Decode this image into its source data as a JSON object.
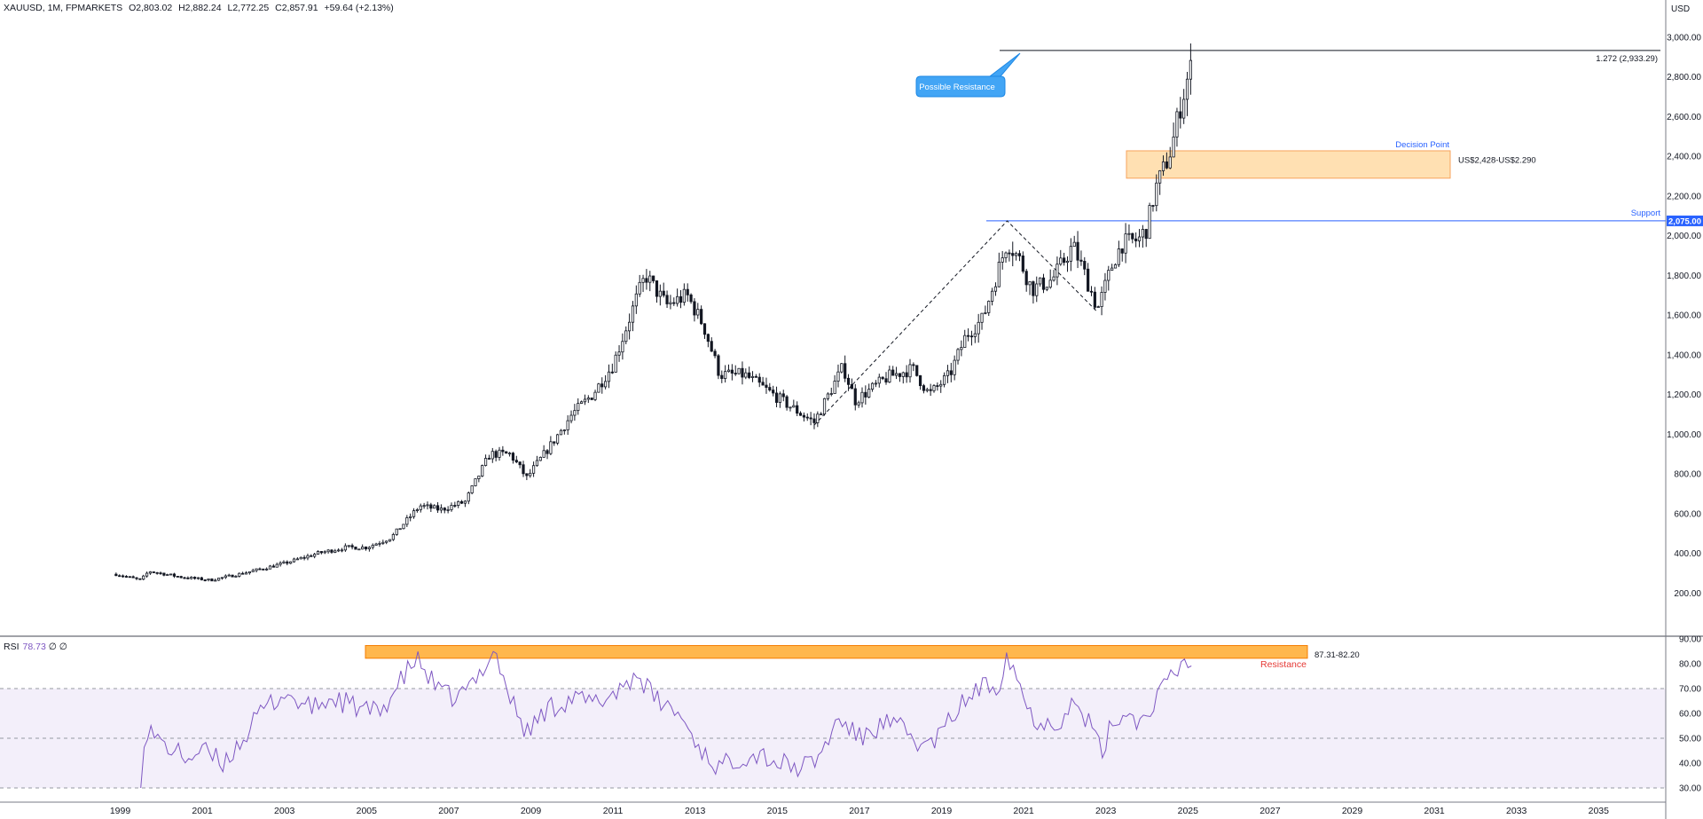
{
  "header": {
    "symbol": "XAUUSD, 1M, FPMARKETS",
    "open": "O2,803.02",
    "high": "H2,882.24",
    "low": "L2,772.25",
    "close": "C2,857.91",
    "change": "+59.64 (+2.13%)"
  },
  "currency": "USD",
  "rsi_header": {
    "name": "RSI",
    "value": "78.73",
    "extra": "∅ ∅"
  },
  "annotations": {
    "fib_label": "1.272 (2,933.29)",
    "possible_resistance": "Possible Resistance",
    "decision_point": "Decision Point",
    "decision_zone": "US$2,428-US$2.290",
    "support": "Support",
    "support_price_tag": "2,075.00",
    "rsi_resistance_range": "87.31-82.20",
    "rsi_resistance": "Resistance"
  },
  "colors": {
    "up": "#131722",
    "down": "#131722",
    "support": "#2962ff",
    "zone_fill": "#ffe0b2",
    "zone_border": "#f7a35c",
    "rsi_line": "#7e57c2",
    "rsi_band": "#f3effa",
    "rsi_resistance_fill": "#ffb74d",
    "callout": "#42a5f5",
    "resistance_text": "#e53935"
  },
  "chart_data": [
    {
      "type": "candlestick",
      "title": "XAUUSD, 1M, FPMARKETS",
      "ylabel": "USD",
      "x_ticks": [
        "1999",
        "2001",
        "2003",
        "2005",
        "2007",
        "2009",
        "2011",
        "2013",
        "2015",
        "2017",
        "2019",
        "2021",
        "2023",
        "2025",
        "2027",
        "2029",
        "2031",
        "2033",
        "2035"
      ],
      "y_ticks": [
        "200.00",
        "400.00",
        "600.00",
        "800.00",
        "1,000.00",
        "1,200.00",
        "1,400.00",
        "1,600.00",
        "1,800.00",
        "2,000.00",
        "2,200.00",
        "2,400.00",
        "2,600.00",
        "2,800.00",
        "3,000.00"
      ],
      "ylim": [
        0,
        3000
      ],
      "price_path": [
        [
          1998.9,
          295
        ],
        [
          1999.5,
          265
        ],
        [
          1999.7,
          310
        ],
        [
          2000.5,
          280
        ],
        [
          2001.2,
          265
        ],
        [
          2002.0,
          300
        ],
        [
          2003.0,
          350
        ],
        [
          2003.8,
          400
        ],
        [
          2004.5,
          430
        ],
        [
          2005.0,
          430
        ],
        [
          2005.6,
          480
        ],
        [
          2006.3,
          640
        ],
        [
          2006.8,
          620
        ],
        [
          2007.4,
          660
        ],
        [
          2008.0,
          900
        ],
        [
          2008.5,
          900
        ],
        [
          2008.9,
          780
        ],
        [
          2009.5,
          950
        ],
        [
          2010.0,
          1100
        ],
        [
          2010.5,
          1200
        ],
        [
          2011.0,
          1350
        ],
        [
          2011.6,
          1700
        ],
        [
          2011.8,
          1800
        ],
        [
          2012.3,
          1650
        ],
        [
          2012.8,
          1700
        ],
        [
          2013.2,
          1550
        ],
        [
          2013.6,
          1300
        ],
        [
          2014.2,
          1300
        ],
        [
          2014.9,
          1200
        ],
        [
          2015.6,
          1100
        ],
        [
          2015.9,
          1060
        ],
        [
          2016.6,
          1340
        ],
        [
          2016.9,
          1170
        ],
        [
          2017.7,
          1290
        ],
        [
          2018.3,
          1330
        ],
        [
          2018.7,
          1200
        ],
        [
          2019.2,
          1300
        ],
        [
          2019.6,
          1500
        ],
        [
          2020.0,
          1580
        ],
        [
          2020.6,
          1970
        ],
        [
          2020.9,
          1880
        ],
        [
          2021.2,
          1730
        ],
        [
          2021.7,
          1780
        ],
        [
          2022.2,
          1950
        ],
        [
          2022.5,
          1800
        ],
        [
          2022.8,
          1630
        ],
        [
          2023.2,
          1880
        ],
        [
          2023.4,
          1960
        ],
        [
          2023.8,
          1980
        ],
        [
          2024.0,
          2040
        ],
        [
          2024.2,
          2230
        ],
        [
          2024.4,
          2330
        ],
        [
          2024.6,
          2440
        ],
        [
          2024.8,
          2640
        ],
        [
          2025.0,
          2800
        ],
        [
          2025.1,
          2858
        ]
      ],
      "swing_low_2015": {
        "x": 2015.9,
        "price": 1046
      },
      "swing_high_2020": {
        "x": 2020.6,
        "price": 2075
      },
      "swing_low_2022": {
        "x": 2022.8,
        "price": 1615
      },
      "support_level": 2075,
      "fib_level": 2933.29,
      "decision_zone": [
        2290,
        2428
      ]
    },
    {
      "type": "line",
      "title": "RSI",
      "y_ticks": [
        "30.00",
        "40.00",
        "50.00",
        "60.00",
        "70.00",
        "80.00",
        "90.00"
      ],
      "ylim": [
        27,
        91
      ],
      "overbought": 70,
      "middle": 50,
      "oversold": 30,
      "resistance_band": [
        82.2,
        87.31
      ],
      "rsi_path": [
        [
          1999.5,
          30
        ],
        [
          1999.6,
          55
        ],
        [
          2000.0,
          48
        ],
        [
          2000.6,
          42
        ],
        [
          2001.0,
          45
        ],
        [
          2001.5,
          40
        ],
        [
          2002.0,
          50
        ],
        [
          2002.5,
          62
        ],
        [
          2003.0,
          68
        ],
        [
          2003.6,
          62
        ],
        [
          2004.2,
          66
        ],
        [
          2004.8,
          62
        ],
        [
          2005.3,
          60
        ],
        [
          2005.8,
          72
        ],
        [
          2006.2,
          82
        ],
        [
          2006.8,
          68
        ],
        [
          2007.2,
          66
        ],
        [
          2007.6,
          72
        ],
        [
          2008.1,
          86
        ],
        [
          2008.5,
          66
        ],
        [
          2008.9,
          52
        ],
        [
          2009.4,
          62
        ],
        [
          2010.0,
          66
        ],
        [
          2010.6,
          64
        ],
        [
          2011.0,
          68
        ],
        [
          2011.6,
          76
        ],
        [
          2012.0,
          66
        ],
        [
          2012.6,
          60
        ],
        [
          2013.2,
          44
        ],
        [
          2013.6,
          38
        ],
        [
          2014.0,
          42
        ],
        [
          2014.6,
          44
        ],
        [
          2015.0,
          40
        ],
        [
          2015.6,
          38
        ],
        [
          2016.0,
          42
        ],
        [
          2016.5,
          58
        ],
        [
          2017.0,
          50
        ],
        [
          2017.6,
          56
        ],
        [
          2018.0,
          54
        ],
        [
          2018.6,
          46
        ],
        [
          2019.0,
          52
        ],
        [
          2019.4,
          62
        ],
        [
          2019.9,
          70
        ],
        [
          2020.4,
          72
        ],
        [
          2020.6,
          85
        ],
        [
          2020.9,
          72
        ],
        [
          2021.2,
          58
        ],
        [
          2021.8,
          56
        ],
        [
          2022.2,
          64
        ],
        [
          2022.6,
          56
        ],
        [
          2022.9,
          44
        ],
        [
          2023.2,
          58
        ],
        [
          2023.6,
          60
        ],
        [
          2023.9,
          56
        ],
        [
          2024.2,
          66
        ],
        [
          2024.5,
          72
        ],
        [
          2024.8,
          78
        ],
        [
          2024.95,
          82
        ],
        [
          2025.1,
          78.73
        ]
      ]
    }
  ]
}
